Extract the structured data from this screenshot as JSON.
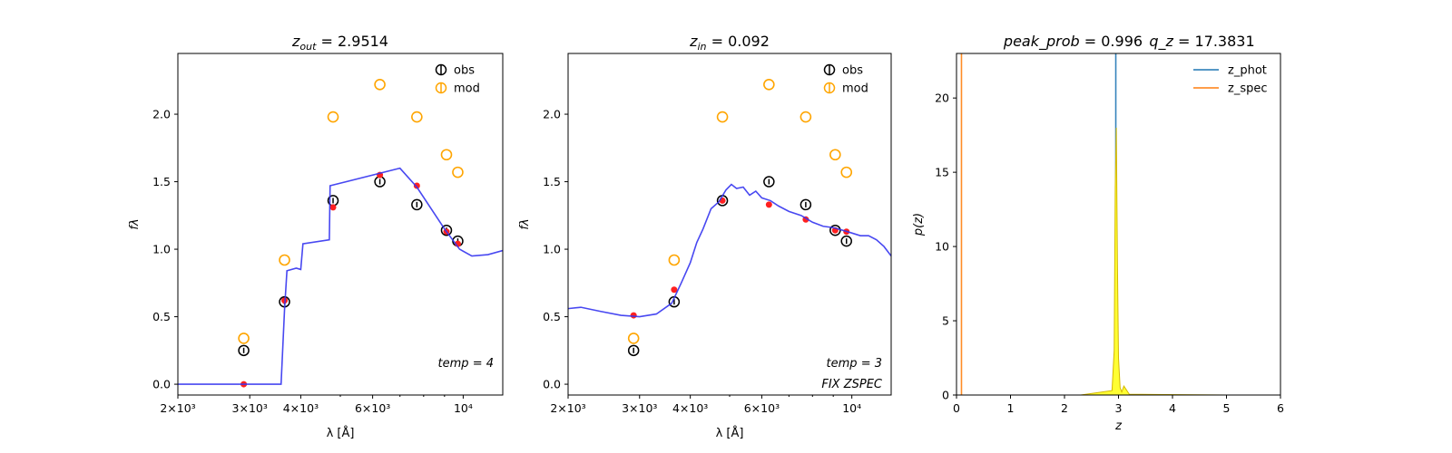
{
  "chart_data": [
    {
      "type": "scatter",
      "title": "z_out = 2.9514",
      "xlabel": "λ [Å]",
      "ylabel": "fλ",
      "xscale": "log",
      "xlim": [
        2000,
        12500
      ],
      "ylim": [
        -0.08,
        2.45
      ],
      "xticks": [
        2000,
        3000,
        4000,
        6000,
        10000
      ],
      "xtick_labels": [
        "2×10³",
        "3×10³",
        "4×10³",
        "6×10³",
        "10⁴"
      ],
      "yticks": [
        0.0,
        0.5,
        1.0,
        1.5,
        2.0
      ],
      "ytick_labels": [
        "0.0",
        "0.5",
        "1.0",
        "1.5",
        "2.0"
      ],
      "legend": {
        "position": "top-right",
        "entries": [
          "obs",
          "mod"
        ]
      },
      "annotations": [
        "temp = 4"
      ],
      "series": [
        {
          "name": "obs",
          "color": "#000000",
          "x": [
            2900,
            3650,
            4800,
            6250,
            7700,
            9100,
            9700
          ],
          "y": [
            0.25,
            0.61,
            1.36,
            1.5,
            1.33,
            1.14,
            1.06
          ]
        },
        {
          "name": "mod",
          "color": "#ffa500",
          "x": [
            2900,
            3650,
            4800,
            6250,
            7700,
            9100,
            9700
          ],
          "y": [
            0.34,
            0.92,
            1.98,
            2.22,
            1.98,
            1.7,
            1.57
          ]
        },
        {
          "color": "#ff2020",
          "x": [
            2900,
            3650,
            4800,
            6250,
            7700,
            9100,
            9700
          ],
          "y": [
            0.0,
            0.62,
            1.31,
            1.55,
            1.47,
            1.13,
            1.04
          ]
        },
        {
          "color": "#3434f0",
          "x": [
            2000,
            3580,
            3650,
            3700,
            3900,
            4000,
            4050,
            4700,
            4720,
            7000,
            7700,
            9000,
            9800,
            10500,
            11500,
            12500
          ],
          "y": [
            0.0,
            0.0,
            0.55,
            0.84,
            0.86,
            0.85,
            1.04,
            1.07,
            1.47,
            1.6,
            1.46,
            1.15,
            1.0,
            0.95,
            0.96,
            0.99
          ]
        }
      ]
    },
    {
      "type": "scatter",
      "title": "z_in = 0.092",
      "xlabel": "λ [Å]",
      "ylabel": "fλ",
      "xscale": "log",
      "xlim": [
        2000,
        12500
      ],
      "ylim": [
        -0.08,
        2.45
      ],
      "xticks": [
        2000,
        3000,
        4000,
        6000,
        10000
      ],
      "xtick_labels": [
        "2×10³",
        "3×10³",
        "4×10³",
        "6×10³",
        "10⁴"
      ],
      "yticks": [
        0.0,
        0.5,
        1.0,
        1.5,
        2.0
      ],
      "ytick_labels": [
        "0.0",
        "0.5",
        "1.0",
        "1.5",
        "2.0"
      ],
      "legend": {
        "position": "top-right",
        "entries": [
          "obs",
          "mod"
        ]
      },
      "annotations": [
        "temp = 3",
        "FIX ZSPEC"
      ],
      "series": [
        {
          "name": "obs",
          "color": "#000000",
          "x": [
            2900,
            3650,
            4800,
            6250,
            7700,
            9100,
            9700
          ],
          "y": [
            0.25,
            0.61,
            1.36,
            1.5,
            1.33,
            1.14,
            1.06
          ]
        },
        {
          "name": "mod",
          "color": "#ffa500",
          "x": [
            2900,
            3650,
            4800,
            6250,
            7700,
            9100,
            9700
          ],
          "y": [
            0.34,
            0.92,
            1.98,
            2.22,
            1.98,
            1.7,
            1.57
          ]
        },
        {
          "color": "#ff2020",
          "x": [
            2900,
            3650,
            4800,
            6250,
            7700,
            9100,
            9700
          ],
          "y": [
            0.51,
            0.7,
            1.36,
            1.33,
            1.22,
            1.14,
            1.13
          ]
        },
        {
          "color": "#3434f0",
          "x": [
            2000,
            2150,
            2400,
            2700,
            3000,
            3300,
            3600,
            3800,
            4000,
            4150,
            4300,
            4500,
            4700,
            4900,
            5050,
            5200,
            5400,
            5600,
            5800,
            6000,
            6300,
            6600,
            7000,
            7500,
            8000,
            8500,
            9000,
            9500,
            10000,
            10500,
            11000,
            11500,
            12000,
            12500
          ],
          "y": [
            0.56,
            0.57,
            0.54,
            0.51,
            0.5,
            0.52,
            0.6,
            0.75,
            0.9,
            1.05,
            1.15,
            1.3,
            1.35,
            1.44,
            1.48,
            1.45,
            1.46,
            1.4,
            1.43,
            1.38,
            1.36,
            1.32,
            1.28,
            1.25,
            1.2,
            1.17,
            1.16,
            1.14,
            1.12,
            1.1,
            1.1,
            1.07,
            1.02,
            0.95
          ]
        }
      ]
    },
    {
      "type": "line",
      "title": "peak_prob = 0.996",
      "subtitle": "q_z = 17.3831",
      "xlabel": "z",
      "ylabel": "p(z)",
      "xlim": [
        0,
        6
      ],
      "ylim": [
        0,
        23
      ],
      "xticks": [
        0,
        1,
        2,
        3,
        4,
        5,
        6
      ],
      "xtick_labels": [
        "0",
        "1",
        "2",
        "3",
        "4",
        "5",
        "6"
      ],
      "yticks": [
        0,
        5,
        10,
        15,
        20
      ],
      "ytick_labels": [
        "0",
        "5",
        "10",
        "15",
        "20"
      ],
      "legend": {
        "position": "top-right",
        "entries": [
          "z_phot",
          "z_spec"
        ]
      },
      "series": [
        {
          "name": "z_phot",
          "color": "#1f77b4",
          "x": [
            2.95,
            2.95
          ],
          "y": [
            0,
            23
          ]
        },
        {
          "name": "z_spec",
          "color": "#ff7f0e",
          "x": [
            0.092,
            0.092
          ],
          "y": [
            0,
            23
          ]
        },
        {
          "color": "#e8d000",
          "x": [
            0.0,
            2.3,
            2.88,
            2.92,
            2.94,
            2.96,
            2.98,
            3.0,
            3.03,
            3.06,
            3.1,
            3.2,
            5.0
          ],
          "y": [
            0.0,
            0.0,
            0.3,
            3.0,
            14.0,
            18.0,
            9.0,
            2.5,
            0.5,
            0.2,
            0.6,
            0.05,
            0.0
          ]
        }
      ]
    }
  ]
}
